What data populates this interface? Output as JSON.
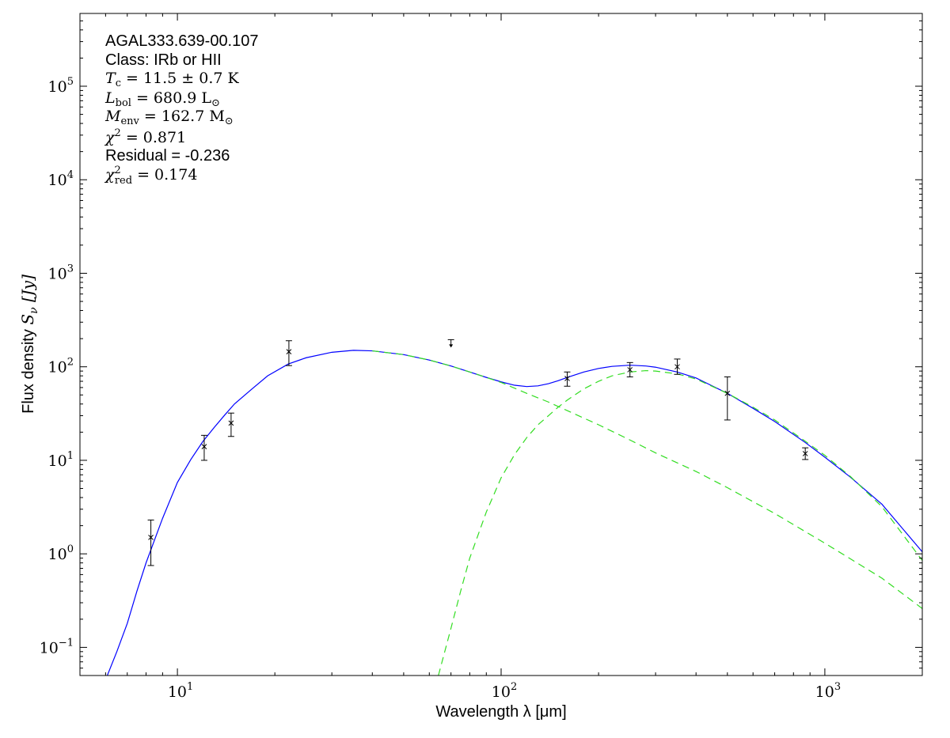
{
  "chart_data": {
    "type": "scatter",
    "xlabel": "Wavelength λ [μm]",
    "ylabel_prefix": "Flux density",
    "ylabel_symbol": "S",
    "ylabel_sub": "ν",
    "ylabel_unit": "[Jy]",
    "x_scale": "log",
    "y_scale": "log",
    "xlim": [
      5,
      2000
    ],
    "ylim": [
      0.05,
      600000
    ],
    "x_ticks": [
      {
        "value": 10,
        "base": "10",
        "exp": "1"
      },
      {
        "value": 100,
        "base": "10",
        "exp": "2"
      },
      {
        "value": 1000,
        "base": "10",
        "exp": "3"
      }
    ],
    "y_ticks": [
      {
        "value": 0.1,
        "base": "10",
        "exp": "−1"
      },
      {
        "value": 1,
        "base": "10",
        "exp": "0"
      },
      {
        "value": 10,
        "base": "10",
        "exp": "1"
      },
      {
        "value": 100,
        "base": "10",
        "exp": "2"
      },
      {
        "value": 1000,
        "base": "10",
        "exp": "3"
      },
      {
        "value": 10000,
        "base": "10",
        "exp": "4"
      },
      {
        "value": 100000,
        "base": "10",
        "exp": "5"
      }
    ],
    "grid": false,
    "annotations": {
      "source": "AGAL333.639-00.107",
      "class_line": "Class: IRb or HII",
      "tc": {
        "symbol": "T",
        "sub": "c",
        "value": " = 11.5 ± 0.7 K"
      },
      "lbol": {
        "symbol": "L",
        "sub": "bol",
        "value": " = 680.9 L",
        "unit_sub": "⊙"
      },
      "menv": {
        "symbol": "M",
        "sub": "env",
        "value": " = 162.7 M",
        "unit_sub": "⊙"
      },
      "chi2": {
        "symbol": "χ",
        "sup": "2",
        "value": " = 0.871"
      },
      "residual": "Residual = -0.236",
      "chi2red": {
        "symbol": "χ",
        "sup": "2",
        "sub": "red",
        "value": " = 0.174"
      }
    },
    "data_points": [
      {
        "x": 8.28,
        "y": 1.5,
        "yerr_low": 0.75,
        "yerr_high": 2.3
      },
      {
        "x": 12.1,
        "y": 14.0,
        "yerr_low": 10.0,
        "yerr_high": 18.5
      },
      {
        "x": 14.65,
        "y": 25.0,
        "yerr_low": 18.0,
        "yerr_high": 32.0
      },
      {
        "x": 22.1,
        "y": 145,
        "yerr_low": 103,
        "yerr_high": 190
      },
      {
        "x": 160,
        "y": 75,
        "yerr_low": 62,
        "yerr_high": 88
      },
      {
        "x": 250,
        "y": 93,
        "yerr_low": 78,
        "yerr_high": 111
      },
      {
        "x": 350,
        "y": 100,
        "yerr_low": 83,
        "yerr_high": 121
      },
      {
        "x": 500,
        "y": 52,
        "yerr_low": 27,
        "yerr_high": 78
      },
      {
        "x": 870,
        "y": 11.8,
        "yerr_low": 10.2,
        "yerr_high": 13.6
      }
    ],
    "upper_limits": [
      {
        "x": 70,
        "y": 195
      }
    ],
    "series": [
      {
        "type": "line",
        "style": "solid",
        "color": "#0000ff",
        "x": [
          6.0,
          6.5,
          7,
          7.5,
          8,
          9,
          10,
          11,
          12,
          13,
          14,
          15,
          17,
          19,
          22,
          25,
          30,
          35,
          40,
          50,
          60,
          70,
          80,
          90,
          100,
          110,
          120,
          130,
          140,
          150,
          160,
          180,
          200,
          220,
          250,
          280,
          300,
          350,
          400,
          500,
          600,
          700,
          870,
          1000,
          1200,
          1500,
          2000
        ],
        "y": [
          0.045,
          0.09,
          0.18,
          0.4,
          0.8,
          2.4,
          5.8,
          10.2,
          16.0,
          22.5,
          30.5,
          40.0,
          58,
          80,
          107,
          125,
          143,
          150,
          148,
          135,
          118,
          102,
          88,
          77,
          69,
          63.5,
          61.5,
          62.5,
          66,
          71,
          77,
          88,
          96,
          101,
          104,
          102,
          99,
          88,
          76,
          52,
          36,
          26,
          15.5,
          10.8,
          6.6,
          3.4,
          1.05
        ]
      },
      {
        "type": "line",
        "style": "dashed",
        "color": "#33dd22",
        "x": [
          40,
          50,
          60,
          70,
          80,
          90,
          100,
          120,
          140,
          160,
          200,
          250,
          300,
          400,
          500,
          700,
          1000,
          1500,
          2000
        ],
        "y": [
          148,
          135,
          118,
          102,
          88,
          77,
          68,
          52,
          42,
          34,
          24,
          16.5,
          12,
          7.6,
          5.1,
          2.7,
          1.3,
          0.55,
          0.26
        ]
      },
      {
        "type": "line",
        "style": "dashed",
        "color": "#33dd22",
        "x": [
          64,
          70,
          75,
          80,
          90,
          100,
          110,
          120,
          130,
          140,
          150,
          160,
          180,
          200,
          220,
          250,
          280,
          300,
          350,
          400,
          500,
          600,
          700,
          870,
          1000,
          1200,
          1500,
          2000
        ],
        "y": [
          0.05,
          0.16,
          0.4,
          0.9,
          2.8,
          6.5,
          11.5,
          17.5,
          24,
          30,
          37,
          44,
          58,
          70,
          80,
          88,
          91,
          90,
          84,
          74,
          52,
          37,
          27,
          16,
          11.3,
          6.7,
          3.2,
          0.85
        ]
      }
    ]
  }
}
